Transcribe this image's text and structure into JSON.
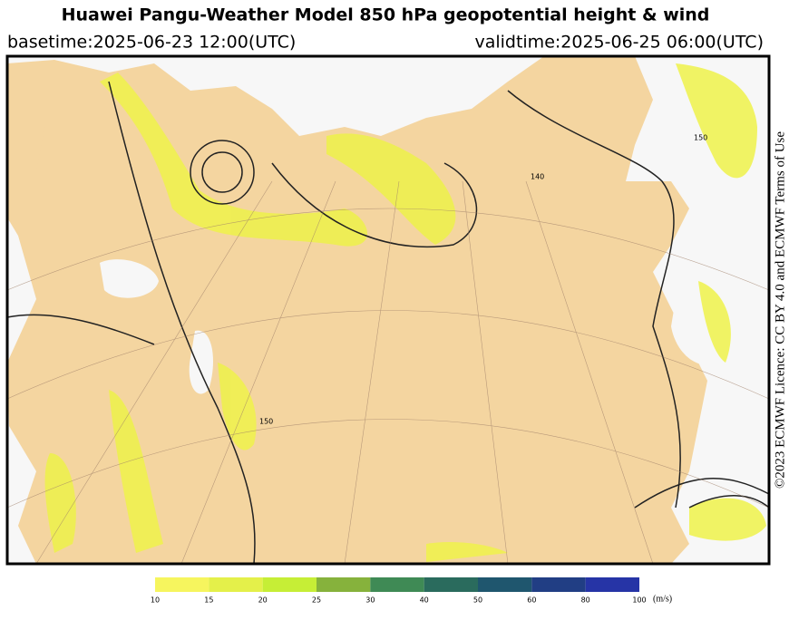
{
  "header": {
    "title": "Huawei Pangu-Weather Model 850 hPa geopotential height & wind",
    "basetime": "basetime:2025-06-23 12:00(UTC)",
    "validtime": "validtime:2025-06-25 06:00(UTC)"
  },
  "license": "©2023 ECMWF Licence: CC BY 4.0 and ECMWF Terms of Use",
  "contour_labels": [
    "150",
    "140",
    "150"
  ],
  "colorbar": {
    "ticks": [
      10,
      15,
      20,
      25,
      30,
      40,
      50,
      60,
      80,
      100
    ],
    "colors": [
      "#f6f55e",
      "#e4f04a",
      "#c6ee36",
      "#86b23c",
      "#3f8a55",
      "#2a6b5d",
      "#1f566e",
      "#213e84",
      "#2634a6"
    ],
    "unit": "(m/s)"
  }
}
